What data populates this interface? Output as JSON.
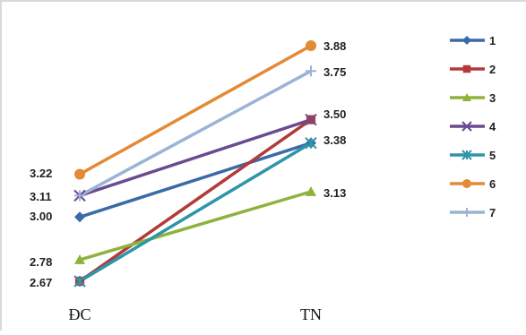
{
  "chart_data": {
    "type": "line",
    "categories": [
      "ĐC",
      "TN"
    ],
    "series": [
      {
        "name": "1",
        "values": [
          3.0,
          3.38
        ],
        "color": "#3b6aa8",
        "marker": "diamond"
      },
      {
        "name": "2",
        "values": [
          2.67,
          3.5
        ],
        "color": "#b33a3a",
        "marker": "square"
      },
      {
        "name": "3",
        "values": [
          2.78,
          3.13
        ],
        "color": "#8db33d",
        "marker": "triangle"
      },
      {
        "name": "4",
        "values": [
          3.11,
          3.5
        ],
        "color": "#6b4a8f",
        "marker": "x"
      },
      {
        "name": "5",
        "values": [
          2.67,
          3.38
        ],
        "color": "#2f95a8",
        "marker": "star"
      },
      {
        "name": "6",
        "values": [
          3.22,
          3.88
        ],
        "color": "#e38a36",
        "marker": "circle"
      },
      {
        "name": "7",
        "values": [
          3.11,
          3.75
        ],
        "color": "#9ab3d6",
        "marker": "plus"
      }
    ],
    "value_labels": {
      "left": [
        "3.22",
        "3.11",
        "3.00",
        "2.78",
        "2.67"
      ],
      "right": [
        "3.88",
        "3.75",
        "3.50",
        "3.38",
        "3.13"
      ]
    },
    "legend_position": "right",
    "grid": false
  }
}
